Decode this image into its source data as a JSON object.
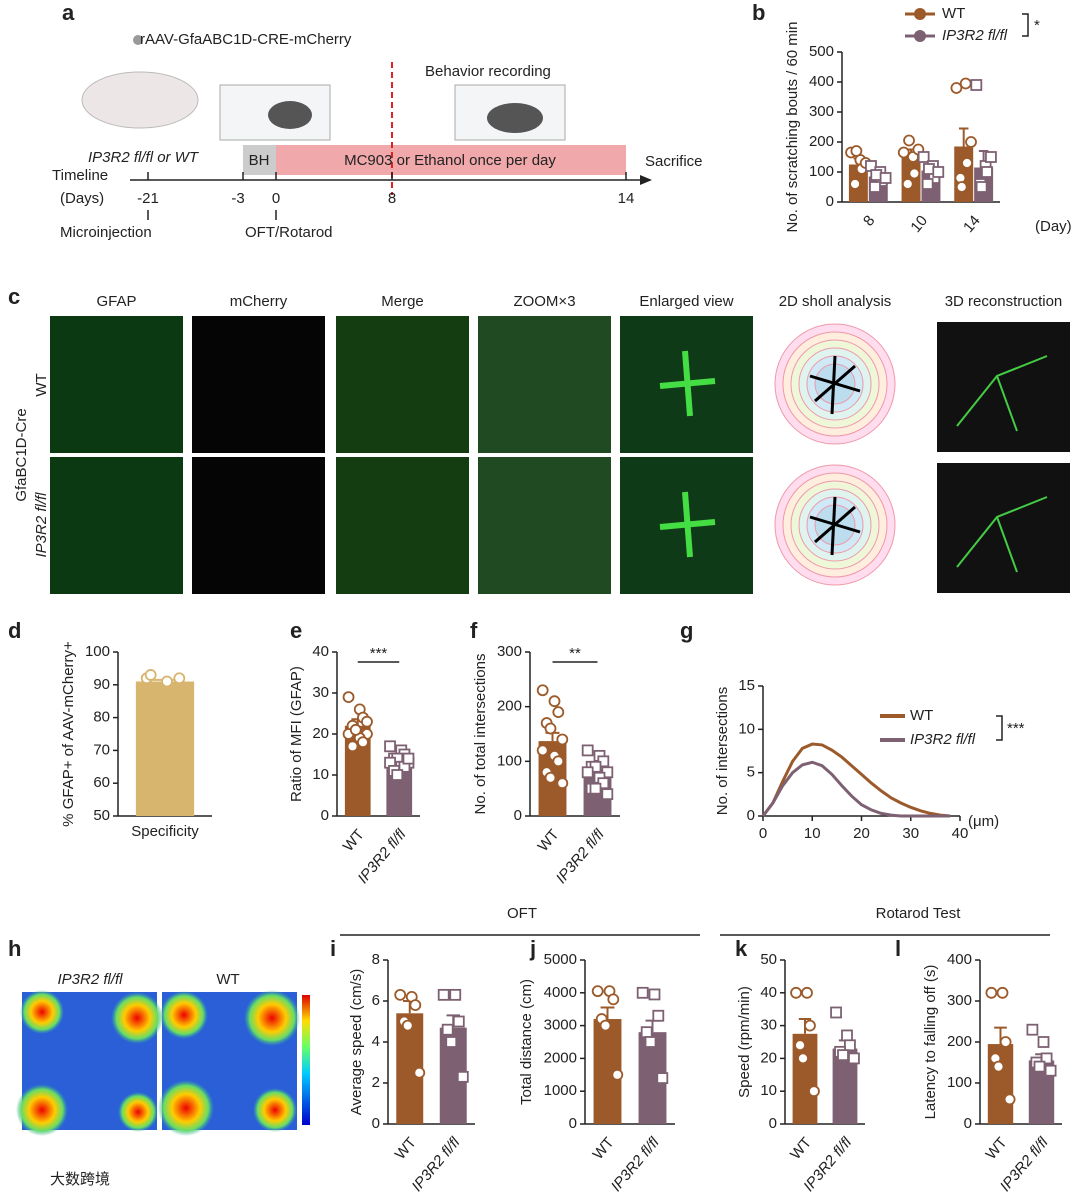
{
  "panel_labels": [
    "a",
    "b",
    "c",
    "d",
    "e",
    "f",
    "g",
    "h",
    "i",
    "j",
    "k",
    "l"
  ],
  "schematic": {
    "virus": "rAAV-GfaABC1D-CRE-mCherry",
    "mouse": "IP3R2 fl/fl or WT",
    "behavior": "Behavior recording",
    "bh": "BH",
    "treatment": "MC903 or Ethanol once per day",
    "sacrifice": "Sacrifice",
    "timeline": "Timeline",
    "days": "(Days)",
    "ticks": [
      "-21",
      "-3",
      "0",
      "8",
      "14"
    ],
    "microinjection": "Microinjection",
    "oft": "OFT/Rotarod"
  },
  "micrographs": {
    "columns": [
      "GFAP",
      "mCherry",
      "Merge",
      "ZOOM×3",
      "Enlarged view",
      "2D sholl analysis",
      "3D reconstruction"
    ],
    "rows": [
      "WT",
      "IP3R2 fl/fl"
    ],
    "group": "GfaBC1D-Cre"
  },
  "heatmap": {
    "labels": [
      "IP3R2 fl/fl",
      "WT"
    ]
  },
  "section_headers": [
    "OFT",
    "Rotarod Test"
  ],
  "watermark": "大数跨境",
  "chart_data": [
    {
      "type": "bar",
      "ylabel": "No. of scratching bouts / 60 min",
      "xlabel": "(Day)",
      "categories": [
        "8",
        "10",
        "14"
      ],
      "ylim": [
        0,
        500
      ],
      "yticks": [
        0,
        100,
        200,
        300,
        400,
        500
      ],
      "legend": "top",
      "annotation": "*",
      "series": [
        {
          "name": "WT",
          "color": "#9c5a2a",
          "marker": "circle",
          "values": [
            125,
            150,
            185
          ],
          "errors": [
            20,
            25,
            60
          ],
          "points": [
            [
              165,
              140,
              110,
              60,
              170,
              130
            ],
            [
              165,
              150,
              95,
              60,
              205,
              175
            ],
            [
              380,
              395,
              130,
              80,
              50,
              200
            ]
          ]
        },
        {
          "name": "IP3R2 fl/fl",
          "color": "#7d6172",
          "marker": "square",
          "values": [
            85,
            105,
            115
          ],
          "errors": [
            15,
            20,
            55
          ],
          "points": [
            [
              120,
              100,
              70,
              50,
              90,
              80
            ],
            [
              150,
              120,
              80,
              60,
              110,
              100
            ],
            [
              390,
              120,
              100,
              60,
              50,
              150
            ]
          ]
        }
      ]
    },
    {
      "type": "bar",
      "ylabel": "% GFAP+ of AAV-mCherry+",
      "categories": [
        "Specificity"
      ],
      "ylim": [
        50,
        100
      ],
      "yticks": [
        50,
        60,
        70,
        80,
        90,
        100
      ],
      "series": [
        {
          "color": "#d8b56e",
          "marker": "circle",
          "values": [
            91
          ],
          "errors": [
            0.5
          ],
          "points": [
            [
              92,
              91,
              92,
              93
            ]
          ]
        }
      ]
    },
    {
      "type": "bar",
      "ylabel": "Ratio of MFI (GFAP)",
      "categories": [
        "WT",
        "IP3R2 fl/fl"
      ],
      "ylim": [
        0,
        40
      ],
      "yticks": [
        0,
        10,
        20,
        30,
        40
      ],
      "annotation": "***",
      "series": [
        {
          "colors": [
            "#9c5a2a",
            "#7d6172"
          ],
          "markers": [
            "circle",
            "square"
          ],
          "values": [
            22,
            13.5
          ],
          "errors": [
            1.6,
            0.8
          ],
          "points": [
            [
              29,
              26,
              24,
              22,
              21,
              20,
              20,
              19,
              18,
              17,
              21,
              23
            ],
            [
              17,
              16,
              15,
              14,
              14,
              13,
              13,
              12,
              12,
              11,
              10,
              14
            ]
          ]
        }
      ]
    },
    {
      "type": "bar",
      "ylabel": "No. of total intersections",
      "categories": [
        "WT",
        "IP3R2 fl/fl"
      ],
      "ylim": [
        0,
        300
      ],
      "yticks": [
        0,
        100,
        200,
        300
      ],
      "annotation": "**",
      "series": [
        {
          "colors": [
            "#9c5a2a",
            "#7d6172"
          ],
          "markers": [
            "circle",
            "square"
          ],
          "values": [
            137,
            85
          ],
          "errors": [
            15,
            8
          ],
          "points": [
            [
              230,
              210,
              190,
              170,
              160,
              140,
              120,
              110,
              100,
              80,
              70,
              60
            ],
            [
              120,
              110,
              100,
              90,
              90,
              80,
              80,
              70,
              60,
              50,
              50,
              40
            ]
          ]
        }
      ]
    },
    {
      "type": "line",
      "ylabel": "No. of intersections",
      "xlabel": "(μm)",
      "xlim": [
        0,
        40
      ],
      "xticks": [
        0,
        10,
        20,
        30,
        40
      ],
      "ylim": [
        0,
        15
      ],
      "yticks": [
        0,
        5,
        10,
        15
      ],
      "legend": "right",
      "annotation": "***",
      "x": [
        0,
        2,
        4,
        6,
        8,
        10,
        12,
        14,
        16,
        18,
        20,
        22,
        24,
        26,
        28,
        30,
        32,
        34,
        36,
        38
      ],
      "series": [
        {
          "name": "WT",
          "color": "#9c5a2a",
          "values": [
            0,
            1.5,
            4,
            6.3,
            7.8,
            8.3,
            8.2,
            7.6,
            6.8,
            5.8,
            4.8,
            3.8,
            2.9,
            2.1,
            1.5,
            1,
            0.6,
            0.3,
            0.1,
            0
          ]
        },
        {
          "name": "IP3R2 fl/fl",
          "color": "#7d6172",
          "values": [
            0,
            1.5,
            3.5,
            5,
            5.9,
            6.2,
            5.8,
            4.8,
            3.5,
            2.3,
            1.3,
            0.7,
            0.3,
            0.1,
            0,
            0,
            0,
            0,
            0,
            0
          ]
        }
      ]
    },
    {
      "type": "bar",
      "ylabel": "Average speed (cm/s)",
      "categories": [
        "WT",
        "IP3R2 fl/fl"
      ],
      "ylim": [
        0,
        8
      ],
      "yticks": [
        0,
        2,
        4,
        6,
        8
      ],
      "series": [
        {
          "colors": [
            "#9c5a2a",
            "#7d6172"
          ],
          "markers": [
            "circle",
            "square"
          ],
          "values": [
            5.4,
            4.7
          ],
          "errors": [
            0.6,
            0.6
          ],
          "points": [
            [
              6.3,
              6.2,
              5.8,
              5.0,
              4.8,
              2.5
            ],
            [
              6.3,
              6.3,
              5.0,
              4.6,
              4.0,
              2.3
            ]
          ]
        }
      ]
    },
    {
      "type": "bar",
      "ylabel": "Total distance (cm)",
      "categories": [
        "WT",
        "IP3R2 fl/fl"
      ],
      "ylim": [
        0,
        5000
      ],
      "yticks": [
        0,
        1000,
        2000,
        3000,
        4000,
        5000
      ],
      "series": [
        {
          "colors": [
            "#9c5a2a",
            "#7d6172"
          ],
          "markers": [
            "circle",
            "square"
          ],
          "values": [
            3200,
            2800
          ],
          "errors": [
            350,
            350
          ],
          "points": [
            [
              4050,
              4050,
              3800,
              3200,
              3000,
              1500
            ],
            [
              4000,
              3950,
              3300,
              2800,
              2500,
              1400
            ]
          ]
        }
      ]
    },
    {
      "type": "bar",
      "ylabel": "Speed (rpm/min)",
      "categories": [
        "WT",
        "IP3R2 fl/fl"
      ],
      "ylim": [
        0,
        50
      ],
      "yticks": [
        0,
        10,
        20,
        30,
        40,
        50
      ],
      "series": [
        {
          "colors": [
            "#9c5a2a",
            "#7d6172"
          ],
          "markers": [
            "circle",
            "square"
          ],
          "values": [
            27.5,
            23
          ],
          "errors": [
            4.5,
            2.5
          ],
          "points": [
            [
              40,
              40,
              30,
              24,
              20,
              10
            ],
            [
              34,
              27,
              24,
              22,
              21,
              20
            ]
          ]
        }
      ]
    },
    {
      "type": "bar",
      "ylabel": "Latency to falling off (s)",
      "categories": [
        "WT",
        "IP3R2 fl/fl"
      ],
      "ylim": [
        0,
        400
      ],
      "yticks": [
        0,
        100,
        200,
        300,
        400
      ],
      "series": [
        {
          "colors": [
            "#9c5a2a",
            "#7d6172"
          ],
          "markers": [
            "circle",
            "square"
          ],
          "values": [
            195,
            155
          ],
          "errors": [
            40,
            15
          ],
          "points": [
            [
              320,
              320,
              200,
              160,
              140,
              60
            ],
            [
              230,
              200,
              160,
              150,
              140,
              130
            ]
          ]
        }
      ]
    }
  ]
}
